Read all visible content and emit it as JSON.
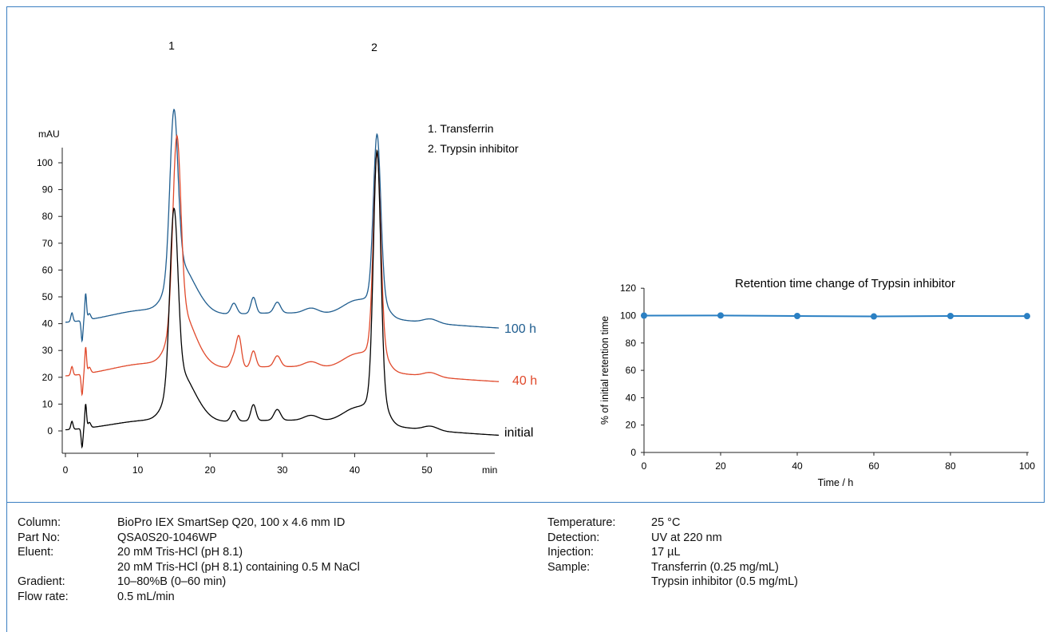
{
  "chart_data": [
    {
      "type": "line",
      "title": "",
      "xlabel": "min",
      "ylabel": "mAU",
      "xlim": [
        0,
        60
      ],
      "ylim": [
        -5,
        110
      ],
      "x_ticks": [
        0,
        10,
        20,
        30,
        40,
        50
      ],
      "y_ticks": [
        0,
        10,
        20,
        30,
        40,
        50,
        60,
        70,
        80,
        90,
        100
      ],
      "series": [
        {
          "name": "100 h",
          "color": "#1f5d8f",
          "baseline": 40,
          "peak1": 110,
          "peak2": 106
        },
        {
          "name": "40 h",
          "color": "#e0492b",
          "baseline": 20,
          "peak1": 99,
          "peak2": 99
        },
        {
          "name": "initial",
          "color": "#000000",
          "baseline": 0,
          "peak1": 74,
          "peak2": 100
        }
      ],
      "peak_labels": [
        {
          "text": "1",
          "x": 15.0
        },
        {
          "text": "2",
          "x": 43.0
        }
      ],
      "annotations": [
        "1. Transferrin",
        "2. Trypsin inhibitor"
      ]
    },
    {
      "type": "line",
      "title": "Retention time change of Trypsin inhibitor",
      "xlabel": "Time / h",
      "ylabel": "% of initial retention time",
      "xlim": [
        0,
        100
      ],
      "ylim": [
        0,
        120
      ],
      "x_ticks": [
        0,
        20,
        40,
        60,
        80,
        100
      ],
      "y_ticks": [
        0,
        20,
        40,
        60,
        80,
        100,
        120
      ],
      "color": "#2b80c3",
      "x": [
        0,
        20,
        40,
        60,
        80,
        100
      ],
      "y": [
        100.0,
        100.1,
        99.7,
        99.4,
        99.7,
        99.6
      ]
    }
  ],
  "conditions": {
    "left": [
      {
        "label": "Column:",
        "value": "BioPro IEX SmartSep Q20, 100 x 4.6 mm ID"
      },
      {
        "label": "Part No:",
        "value": "QSA0S20-1046WP"
      },
      {
        "label": "Eluent:",
        "value": "20 mM Tris-HCl (pH 8.1)"
      },
      {
        "label": "",
        "value": "20 mM Tris-HCl (pH 8.1) containing 0.5 M NaCl"
      },
      {
        "label": "Gradient:",
        "value": "10–80%B (0–60 min)"
      },
      {
        "label": "Flow rate:",
        "value": "0.5 mL/min"
      }
    ],
    "right": [
      {
        "label": "Temperature:",
        "value": "25 °C"
      },
      {
        "label": "Detection:",
        "value": "UV at 220 nm"
      },
      {
        "label": "Injection:",
        "value": "17 µL"
      },
      {
        "label": "Sample:",
        "value": "Transferrin (0.25 mg/mL)"
      },
      {
        "label": "",
        "value": "Trypsin inhibitor (0.5 mg/mL)"
      }
    ]
  }
}
